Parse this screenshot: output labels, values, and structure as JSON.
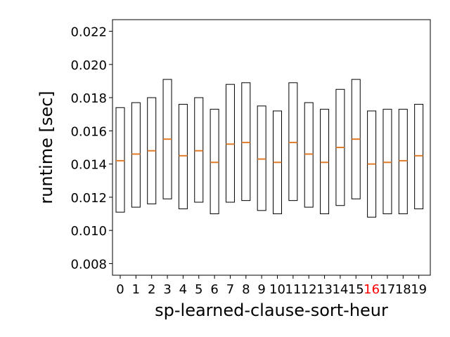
{
  "chart_data": {
    "type": "box",
    "title": "",
    "xlabel": "sp-learned-clause-sort-heur",
    "ylabel": "runtime [sec]",
    "ylim": [
      0.0073,
      0.0227
    ],
    "yticks": [
      "0.008",
      "0.010",
      "0.012",
      "0.014",
      "0.016",
      "0.018",
      "0.020",
      "0.022"
    ],
    "ytick_values": [
      0.008,
      0.01,
      0.012,
      0.014,
      0.016,
      0.018,
      0.02,
      0.022
    ],
    "categories": [
      "0",
      "1",
      "2",
      "3",
      "4",
      "5",
      "6",
      "7",
      "8",
      "9",
      "10",
      "11",
      "12",
      "13",
      "14",
      "15",
      "16",
      "17",
      "18",
      "19"
    ],
    "highlight_category": "16",
    "highlight_color": "#ff0000",
    "box_edge_color": "#000000",
    "median_color": "#e07b2a",
    "grid": false,
    "boxes": [
      {
        "low": 0.0111,
        "high": 0.0174,
        "median": 0.0142
      },
      {
        "low": 0.0114,
        "high": 0.0177,
        "median": 0.0146
      },
      {
        "low": 0.0116,
        "high": 0.018,
        "median": 0.0148
      },
      {
        "low": 0.0119,
        "high": 0.0191,
        "median": 0.0155
      },
      {
        "low": 0.0113,
        "high": 0.0176,
        "median": 0.0145
      },
      {
        "low": 0.0117,
        "high": 0.018,
        "median": 0.0148
      },
      {
        "low": 0.011,
        "high": 0.0173,
        "median": 0.0141
      },
      {
        "low": 0.0117,
        "high": 0.0188,
        "median": 0.0152
      },
      {
        "low": 0.0118,
        "high": 0.0189,
        "median": 0.0153
      },
      {
        "low": 0.0112,
        "high": 0.0175,
        "median": 0.0143
      },
      {
        "low": 0.011,
        "high": 0.0172,
        "median": 0.0141
      },
      {
        "low": 0.0118,
        "high": 0.0189,
        "median": 0.0153
      },
      {
        "low": 0.0114,
        "high": 0.0177,
        "median": 0.0146
      },
      {
        "low": 0.011,
        "high": 0.0173,
        "median": 0.0141
      },
      {
        "low": 0.0115,
        "high": 0.0185,
        "median": 0.015
      },
      {
        "low": 0.0119,
        "high": 0.0191,
        "median": 0.0155
      },
      {
        "low": 0.0108,
        "high": 0.0172,
        "median": 0.014
      },
      {
        "low": 0.011,
        "high": 0.0173,
        "median": 0.0141
      },
      {
        "low": 0.011,
        "high": 0.0173,
        "median": 0.0142
      },
      {
        "low": 0.0113,
        "high": 0.0176,
        "median": 0.0145
      }
    ]
  }
}
